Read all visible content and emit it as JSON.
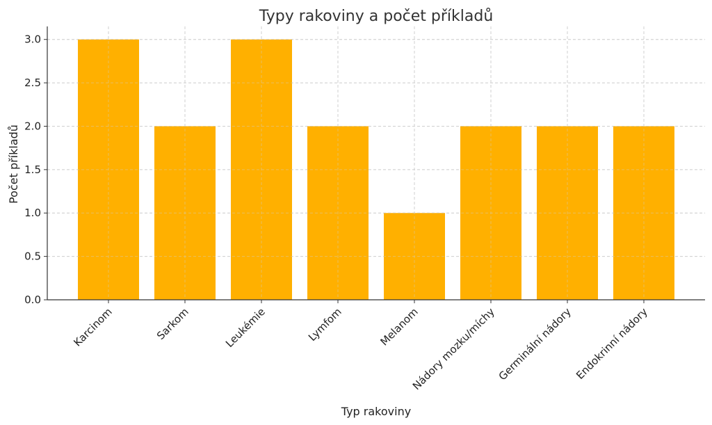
{
  "chart_data": {
    "type": "bar",
    "title": "Typy rakoviny a počet příkladů",
    "xlabel": "Typ rakoviny",
    "ylabel": "Počet příkladů",
    "categories": [
      "Karcinom",
      "Sarkom",
      "Leukémie",
      "Lymfom",
      "Melanom",
      "Nádory mozku/míchy",
      "Germinální nádory",
      "Endokrinní nádory"
    ],
    "values": [
      3,
      2,
      3,
      2,
      1,
      2,
      2,
      2
    ],
    "ylim": [
      0,
      3.15
    ],
    "yticks": [
      0.0,
      0.5,
      1.0,
      1.5,
      2.0,
      2.5,
      3.0
    ],
    "ytick_labels": [
      "0.0",
      "0.5",
      "1.0",
      "1.5",
      "2.0",
      "2.5",
      "3.0"
    ],
    "bar_color": "#FFB000",
    "grid": true
  }
}
